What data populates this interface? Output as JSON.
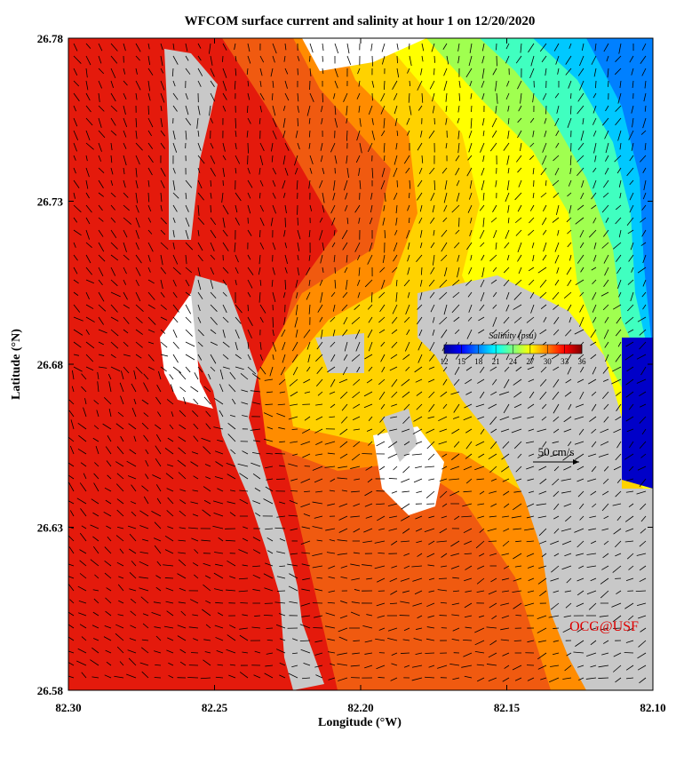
{
  "chart_data": {
    "type": "map",
    "title": "WFCOM surface current and salinity at hour 1 on 12/20/2020",
    "x_label": "Longitude (°W)",
    "y_label": "Latitude (°N)",
    "xlim": [
      82.3,
      82.1
    ],
    "xticks": [
      {
        "value": 82.3,
        "label": "82.30"
      },
      82.25,
      {
        "value": 82.2,
        "label": "82.20"
      },
      82.15,
      {
        "value": 82.1,
        "label": "82.10"
      }
    ],
    "ylim": [
      26.58,
      26.78
    ],
    "yticks": [
      26.58,
      26.63,
      26.68,
      26.73,
      26.78
    ],
    "colorbar": {
      "title": "Salinity (psu)",
      "lim": [
        12,
        36
      ],
      "ticks": [
        12,
        15,
        18,
        21,
        24,
        27,
        30,
        33,
        36
      ]
    },
    "scale_label": "50 cm/s",
    "credit": "OCG@USF"
  }
}
